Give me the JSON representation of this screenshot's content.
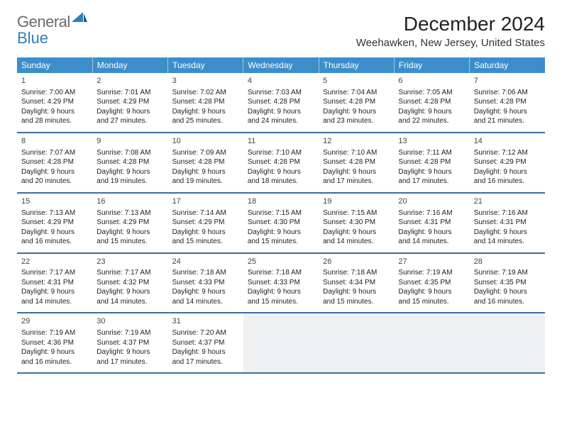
{
  "logo": {
    "general": "General",
    "blue": "Blue"
  },
  "header": {
    "month_title": "December 2024",
    "location": "Weehawken, New Jersey, United States"
  },
  "colors": {
    "header_bg": "#3c8ecb",
    "row_border": "#3c6e9b",
    "empty_bg": "#eef0f1"
  },
  "weekdays": [
    "Sunday",
    "Monday",
    "Tuesday",
    "Wednesday",
    "Thursday",
    "Friday",
    "Saturday"
  ],
  "days": [
    {
      "num": "1",
      "sunrise": "Sunrise: 7:00 AM",
      "sunset": "Sunset: 4:29 PM",
      "daylight1": "Daylight: 9 hours",
      "daylight2": "and 28 minutes."
    },
    {
      "num": "2",
      "sunrise": "Sunrise: 7:01 AM",
      "sunset": "Sunset: 4:29 PM",
      "daylight1": "Daylight: 9 hours",
      "daylight2": "and 27 minutes."
    },
    {
      "num": "3",
      "sunrise": "Sunrise: 7:02 AM",
      "sunset": "Sunset: 4:28 PM",
      "daylight1": "Daylight: 9 hours",
      "daylight2": "and 25 minutes."
    },
    {
      "num": "4",
      "sunrise": "Sunrise: 7:03 AM",
      "sunset": "Sunset: 4:28 PM",
      "daylight1": "Daylight: 9 hours",
      "daylight2": "and 24 minutes."
    },
    {
      "num": "5",
      "sunrise": "Sunrise: 7:04 AM",
      "sunset": "Sunset: 4:28 PM",
      "daylight1": "Daylight: 9 hours",
      "daylight2": "and 23 minutes."
    },
    {
      "num": "6",
      "sunrise": "Sunrise: 7:05 AM",
      "sunset": "Sunset: 4:28 PM",
      "daylight1": "Daylight: 9 hours",
      "daylight2": "and 22 minutes."
    },
    {
      "num": "7",
      "sunrise": "Sunrise: 7:06 AM",
      "sunset": "Sunset: 4:28 PM",
      "daylight1": "Daylight: 9 hours",
      "daylight2": "and 21 minutes."
    },
    {
      "num": "8",
      "sunrise": "Sunrise: 7:07 AM",
      "sunset": "Sunset: 4:28 PM",
      "daylight1": "Daylight: 9 hours",
      "daylight2": "and 20 minutes."
    },
    {
      "num": "9",
      "sunrise": "Sunrise: 7:08 AM",
      "sunset": "Sunset: 4:28 PM",
      "daylight1": "Daylight: 9 hours",
      "daylight2": "and 19 minutes."
    },
    {
      "num": "10",
      "sunrise": "Sunrise: 7:09 AM",
      "sunset": "Sunset: 4:28 PM",
      "daylight1": "Daylight: 9 hours",
      "daylight2": "and 19 minutes."
    },
    {
      "num": "11",
      "sunrise": "Sunrise: 7:10 AM",
      "sunset": "Sunset: 4:28 PM",
      "daylight1": "Daylight: 9 hours",
      "daylight2": "and 18 minutes."
    },
    {
      "num": "12",
      "sunrise": "Sunrise: 7:10 AM",
      "sunset": "Sunset: 4:28 PM",
      "daylight1": "Daylight: 9 hours",
      "daylight2": "and 17 minutes."
    },
    {
      "num": "13",
      "sunrise": "Sunrise: 7:11 AM",
      "sunset": "Sunset: 4:28 PM",
      "daylight1": "Daylight: 9 hours",
      "daylight2": "and 17 minutes."
    },
    {
      "num": "14",
      "sunrise": "Sunrise: 7:12 AM",
      "sunset": "Sunset: 4:29 PM",
      "daylight1": "Daylight: 9 hours",
      "daylight2": "and 16 minutes."
    },
    {
      "num": "15",
      "sunrise": "Sunrise: 7:13 AM",
      "sunset": "Sunset: 4:29 PM",
      "daylight1": "Daylight: 9 hours",
      "daylight2": "and 16 minutes."
    },
    {
      "num": "16",
      "sunrise": "Sunrise: 7:13 AM",
      "sunset": "Sunset: 4:29 PM",
      "daylight1": "Daylight: 9 hours",
      "daylight2": "and 15 minutes."
    },
    {
      "num": "17",
      "sunrise": "Sunrise: 7:14 AM",
      "sunset": "Sunset: 4:29 PM",
      "daylight1": "Daylight: 9 hours",
      "daylight2": "and 15 minutes."
    },
    {
      "num": "18",
      "sunrise": "Sunrise: 7:15 AM",
      "sunset": "Sunset: 4:30 PM",
      "daylight1": "Daylight: 9 hours",
      "daylight2": "and 15 minutes."
    },
    {
      "num": "19",
      "sunrise": "Sunrise: 7:15 AM",
      "sunset": "Sunset: 4:30 PM",
      "daylight1": "Daylight: 9 hours",
      "daylight2": "and 14 minutes."
    },
    {
      "num": "20",
      "sunrise": "Sunrise: 7:16 AM",
      "sunset": "Sunset: 4:31 PM",
      "daylight1": "Daylight: 9 hours",
      "daylight2": "and 14 minutes."
    },
    {
      "num": "21",
      "sunrise": "Sunrise: 7:16 AM",
      "sunset": "Sunset: 4:31 PM",
      "daylight1": "Daylight: 9 hours",
      "daylight2": "and 14 minutes."
    },
    {
      "num": "22",
      "sunrise": "Sunrise: 7:17 AM",
      "sunset": "Sunset: 4:31 PM",
      "daylight1": "Daylight: 9 hours",
      "daylight2": "and 14 minutes."
    },
    {
      "num": "23",
      "sunrise": "Sunrise: 7:17 AM",
      "sunset": "Sunset: 4:32 PM",
      "daylight1": "Daylight: 9 hours",
      "daylight2": "and 14 minutes."
    },
    {
      "num": "24",
      "sunrise": "Sunrise: 7:18 AM",
      "sunset": "Sunset: 4:33 PM",
      "daylight1": "Daylight: 9 hours",
      "daylight2": "and 14 minutes."
    },
    {
      "num": "25",
      "sunrise": "Sunrise: 7:18 AM",
      "sunset": "Sunset: 4:33 PM",
      "daylight1": "Daylight: 9 hours",
      "daylight2": "and 15 minutes."
    },
    {
      "num": "26",
      "sunrise": "Sunrise: 7:18 AM",
      "sunset": "Sunset: 4:34 PM",
      "daylight1": "Daylight: 9 hours",
      "daylight2": "and 15 minutes."
    },
    {
      "num": "27",
      "sunrise": "Sunrise: 7:19 AM",
      "sunset": "Sunset: 4:35 PM",
      "daylight1": "Daylight: 9 hours",
      "daylight2": "and 15 minutes."
    },
    {
      "num": "28",
      "sunrise": "Sunrise: 7:19 AM",
      "sunset": "Sunset: 4:35 PM",
      "daylight1": "Daylight: 9 hours",
      "daylight2": "and 16 minutes."
    },
    {
      "num": "29",
      "sunrise": "Sunrise: 7:19 AM",
      "sunset": "Sunset: 4:36 PM",
      "daylight1": "Daylight: 9 hours",
      "daylight2": "and 16 minutes."
    },
    {
      "num": "30",
      "sunrise": "Sunrise: 7:19 AM",
      "sunset": "Sunset: 4:37 PM",
      "daylight1": "Daylight: 9 hours",
      "daylight2": "and 17 minutes."
    },
    {
      "num": "31",
      "sunrise": "Sunrise: 7:20 AM",
      "sunset": "Sunset: 4:37 PM",
      "daylight1": "Daylight: 9 hours",
      "daylight2": "and 17 minutes."
    }
  ]
}
